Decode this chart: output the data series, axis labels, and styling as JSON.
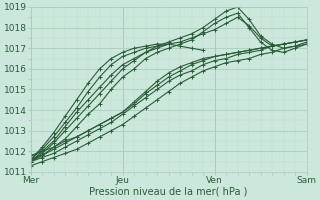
{
  "title": "",
  "xlabel": "Pression niveau de la mer( hPa )",
  "ylim": [
    1011,
    1019
  ],
  "xlim": [
    0,
    72
  ],
  "yticks": [
    1011,
    1012,
    1013,
    1014,
    1015,
    1016,
    1017,
    1018,
    1019
  ],
  "xtick_positions": [
    0,
    24,
    48,
    72
  ],
  "xtick_labels": [
    "Mer",
    "Jeu",
    "Ven",
    "Sam"
  ],
  "bg_color": "#cce8dc",
  "grid_color_major": "#aacebb",
  "grid_color_minor": "#bcdccc",
  "line_color": "#2a5c38",
  "line_width": 0.8,
  "marker": "+",
  "marker_size": 3,
  "marker_edge_width": 0.7,
  "lines": [
    {
      "x": [
        0,
        3,
        6,
        9,
        12,
        15,
        18,
        21,
        24,
        27,
        30,
        33,
        36,
        39,
        42,
        45,
        48,
        51,
        54,
        57,
        60,
        63,
        66,
        69,
        72
      ],
      "y": [
        1011.3,
        1011.5,
        1011.7,
        1011.9,
        1012.1,
        1012.4,
        1012.7,
        1013.0,
        1013.3,
        1013.7,
        1014.1,
        1014.5,
        1014.9,
        1015.3,
        1015.6,
        1015.9,
        1016.1,
        1016.3,
        1016.4,
        1016.5,
        1016.7,
        1016.8,
        1017.0,
        1017.1,
        1017.2
      ]
    },
    {
      "x": [
        0,
        3,
        6,
        9,
        12,
        15,
        18,
        21,
        24,
        27,
        30,
        33,
        36,
        39,
        42,
        45,
        48,
        51,
        54,
        57,
        60,
        63,
        66,
        69,
        72
      ],
      "y": [
        1011.5,
        1011.7,
        1011.9,
        1012.2,
        1012.5,
        1012.8,
        1013.1,
        1013.4,
        1013.8,
        1014.2,
        1014.6,
        1015.0,
        1015.4,
        1015.7,
        1015.9,
        1016.2,
        1016.4,
        1016.5,
        1016.7,
        1016.8,
        1016.9,
        1017.1,
        1017.2,
        1017.3,
        1017.4
      ]
    },
    {
      "x": [
        0,
        3,
        6,
        9,
        12,
        15,
        18,
        21,
        24,
        27,
        30,
        33,
        36,
        39,
        42,
        45,
        48,
        51,
        54,
        57,
        60,
        63,
        66,
        69,
        72
      ],
      "y": [
        1011.6,
        1011.8,
        1012.1,
        1012.4,
        1012.7,
        1013.0,
        1013.3,
        1013.6,
        1013.9,
        1014.3,
        1014.8,
        1015.2,
        1015.6,
        1015.9,
        1016.2,
        1016.4,
        1016.6,
        1016.7,
        1016.8,
        1016.9,
        1017.0,
        1017.1,
        1017.2,
        1017.3,
        1017.4
      ]
    },
    {
      "x": [
        0,
        3,
        6,
        9,
        12,
        15,
        18,
        21,
        24,
        27,
        30,
        33,
        36,
        39,
        42,
        45,
        48,
        51,
        54,
        57,
        60,
        63,
        66,
        69,
        72
      ],
      "y": [
        1011.8,
        1012.0,
        1012.2,
        1012.5,
        1012.7,
        1013.0,
        1013.3,
        1013.6,
        1013.9,
        1014.4,
        1014.9,
        1015.4,
        1015.8,
        1016.1,
        1016.3,
        1016.5,
        1016.6,
        1016.7,
        1016.8,
        1016.9,
        1017.0,
        1017.1,
        1017.2,
        1017.3,
        1017.4
      ]
    },
    {
      "x": [
        0,
        3,
        6,
        9,
        12,
        15,
        18,
        21,
        24,
        27,
        30,
        33,
        36,
        39,
        42,
        45,
        48,
        51,
        54,
        57,
        60,
        63,
        66,
        69,
        72
      ],
      "y": [
        1011.5,
        1011.8,
        1012.2,
        1012.6,
        1013.2,
        1013.8,
        1014.3,
        1015.0,
        1015.6,
        1016.0,
        1016.5,
        1016.8,
        1017.0,
        1017.2,
        1017.4,
        1017.8,
        1018.2,
        1018.5,
        1018.7,
        1018.0,
        1017.3,
        1016.9,
        1016.8,
        1017.0,
        1017.2
      ]
    },
    {
      "x": [
        0,
        3,
        6,
        9,
        12,
        15,
        18,
        21,
        24,
        27,
        30,
        33,
        36,
        39,
        42,
        45,
        48,
        51,
        54,
        57,
        60,
        63,
        66,
        69,
        72
      ],
      "y": [
        1011.5,
        1011.9,
        1012.4,
        1013.0,
        1013.6,
        1014.2,
        1014.8,
        1015.4,
        1016.0,
        1016.4,
        1016.8,
        1017.1,
        1017.3,
        1017.5,
        1017.7,
        1018.0,
        1018.4,
        1018.8,
        1019.0,
        1018.4,
        1017.6,
        1017.2,
        1017.0,
        1017.1,
        1017.3
      ]
    },
    {
      "x": [
        0,
        3,
        6,
        9,
        12,
        15,
        18,
        21,
        24,
        27,
        30,
        33,
        36,
        39,
        42,
        45,
        48,
        51,
        54,
        57,
        60,
        63
      ],
      "y": [
        1011.5,
        1012.0,
        1012.5,
        1013.2,
        1013.9,
        1014.5,
        1015.1,
        1015.7,
        1016.2,
        1016.5,
        1016.8,
        1017.0,
        1017.2,
        1017.3,
        1017.5,
        1017.7,
        1017.9,
        1018.2,
        1018.5,
        1018.1,
        1017.5,
        1017.1
      ]
    },
    {
      "x": [
        0,
        3,
        6,
        9,
        12,
        15,
        18,
        21,
        24,
        27,
        30,
        33,
        36,
        39,
        42,
        45
      ],
      "y": [
        1011.6,
        1012.1,
        1012.7,
        1013.4,
        1014.1,
        1014.9,
        1015.6,
        1016.2,
        1016.6,
        1016.8,
        1017.0,
        1017.1,
        1017.2,
        1017.1,
        1017.0,
        1016.9
      ]
    },
    {
      "x": [
        0,
        3,
        6,
        9,
        12,
        15,
        18,
        21,
        24,
        27,
        30,
        33,
        36
      ],
      "y": [
        1011.6,
        1012.2,
        1012.9,
        1013.7,
        1014.5,
        1015.3,
        1016.0,
        1016.5,
        1016.8,
        1017.0,
        1017.1,
        1017.2,
        1017.2
      ]
    }
  ]
}
